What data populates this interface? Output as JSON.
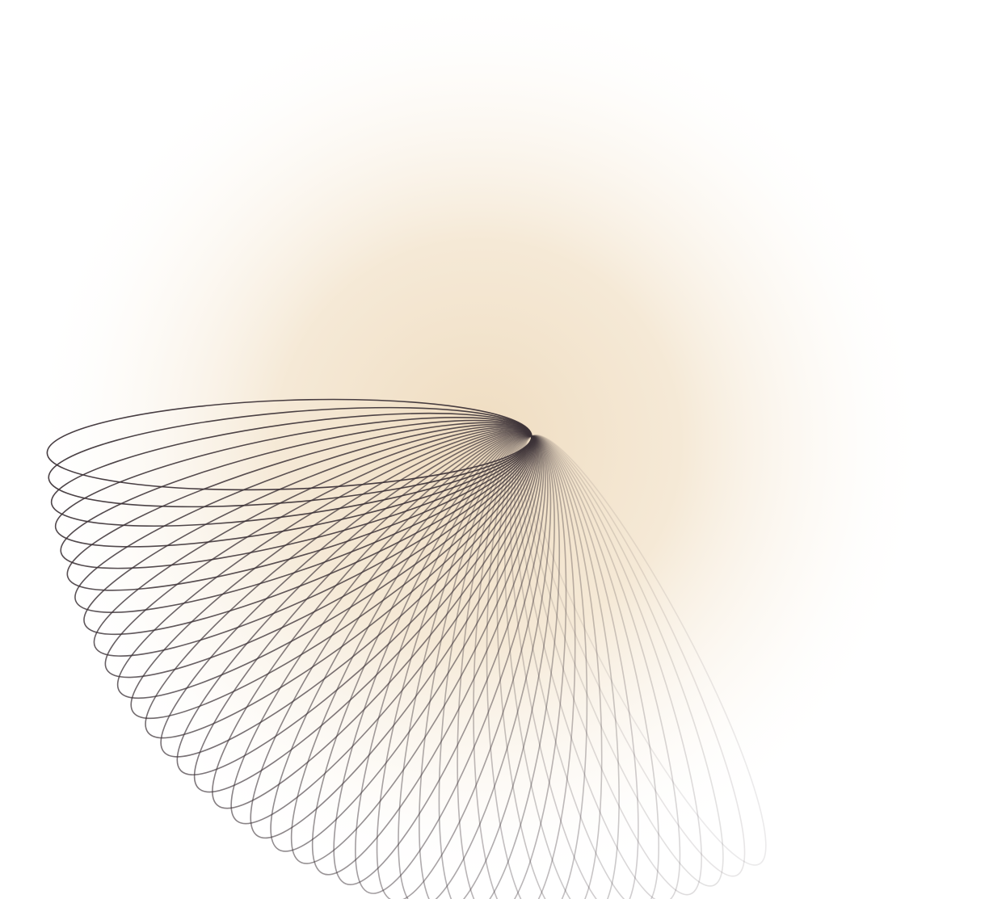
{
  "artwork": {
    "kind": "rotating-ellipse-spirograph",
    "ellipse_count": 40,
    "stroke_color": "#3d3338",
    "glow_color": "#efdcc0",
    "background_color": "#ffffff"
  }
}
